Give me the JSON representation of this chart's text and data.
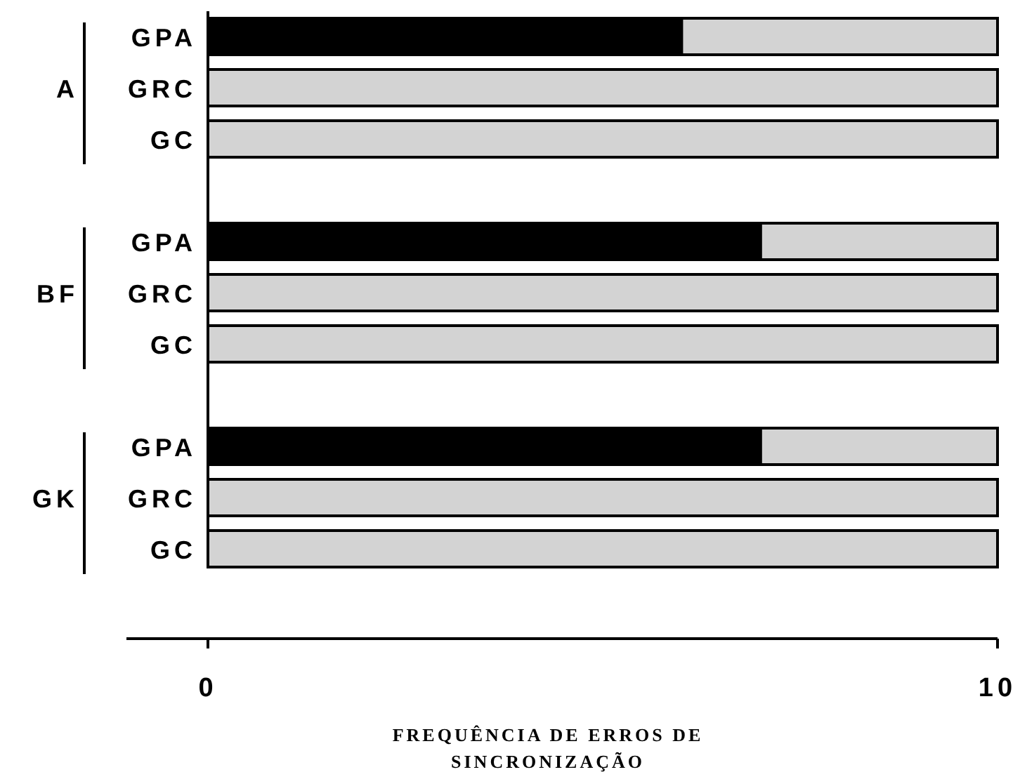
{
  "chart_data": {
    "type": "bar",
    "orientation": "horizontal",
    "stacked": true,
    "xlabel": "FREQUÊNCIA DE ERROS DE SINCRONIZAÇÃO",
    "categories": [
      "GPA",
      "GRC",
      "GC",
      null,
      "GPA",
      "GRC",
      "GC",
      null,
      "GPA",
      "GRC",
      "GC"
    ],
    "series": [
      {
        "color": "#000000",
        "values": [
          6,
          null,
          null,
          null,
          7,
          null,
          null,
          null,
          7,
          null,
          null
        ]
      },
      {
        "color": "#d3d3d3",
        "values": [
          4,
          10,
          10,
          null,
          3,
          10,
          10,
          null,
          3,
          10,
          10
        ]
      }
    ],
    "xlim": [
      0,
      10
    ],
    "xticks": [
      0,
      10
    ],
    "annotations": [
      "A",
      "BF",
      "GK"
    ]
  }
}
